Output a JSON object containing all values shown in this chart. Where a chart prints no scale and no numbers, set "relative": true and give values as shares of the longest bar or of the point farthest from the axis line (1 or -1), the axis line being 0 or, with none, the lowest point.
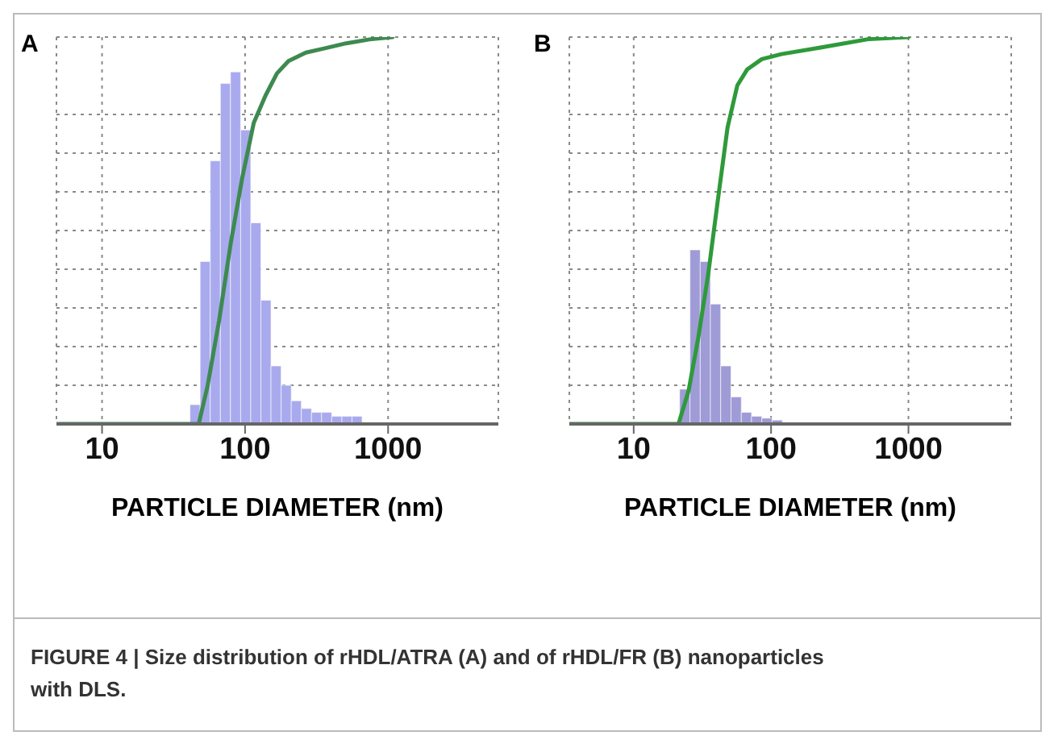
{
  "chart_data": [
    {
      "type": "histogram",
      "title": "A",
      "xlabel": "PARTICLE DIAMETER (nm)",
      "relative": true,
      "log": "x",
      "xlim": [
        4.8,
        5900
      ],
      "xticks": [
        10,
        100,
        1000
      ],
      "grid": true,
      "annotations": [
        "FIGURE 4 | Size distribution of rHDL/ATRA (A) and of rHDL/FR (B) nanoparticles with DLS."
      ],
      "series": [
        {
          "type": "histogram",
          "color": "#a9aaee",
          "bins": [
            41.2,
            48.5,
            57.1,
            67.2,
            79.1,
            93.1,
            109.6,
            129,
            151.8,
            178.7,
            210.3,
            247.5,
            291.3,
            342.9,
            403.6,
            475,
            559,
            658
          ],
          "values": [
            0.05,
            0.42,
            0.68,
            0.88,
            0.91,
            0.76,
            0.52,
            0.32,
            0.15,
            0.1,
            0.06,
            0.04,
            0.03,
            0.03,
            0.02,
            0.02,
            0.02
          ]
        },
        {
          "type": "line",
          "color": "#3d8a50",
          "x": [
            4.8,
            40,
            47.4,
            54.6,
            65.8,
            79.3,
            95.5,
            115,
            139,
            167,
            201,
            266,
            352,
            511,
            741,
            1076
          ],
          "values": [
            0,
            0,
            0,
            0.097,
            0.267,
            0.466,
            0.636,
            0.778,
            0.849,
            0.906,
            0.938,
            0.96,
            0.97,
            0.984,
            0.994,
            1
          ]
        }
      ]
    },
    {
      "type": "histogram",
      "title": "B",
      "xlabel": "PARTICLE DIAMETER (nm)",
      "relative": true,
      "log": "x",
      "xlim": [
        3.4,
        5600
      ],
      "xticks": [
        10,
        100,
        1000
      ],
      "grid": true,
      "series": [
        {
          "type": "histogram",
          "color": "#9f9bd6",
          "bins": [
            21.6,
            25.7,
            30.5,
            36.2,
            43.0,
            51.1,
            60.7,
            72.1,
            85.7,
            101.8,
            120.9
          ],
          "values": [
            0.09,
            0.45,
            0.42,
            0.31,
            0.15,
            0.07,
            0.03,
            0.02,
            0.015,
            0.01
          ]
        },
        {
          "type": "line",
          "color": "#2e9a3a",
          "x": [
            3.4,
            21.2,
            25.1,
            29.5,
            34.8,
            40.9,
            48.2,
            56.8,
            66.9,
            85.6,
            119,
            229,
            519,
            1000
          ],
          "values": [
            0,
            0,
            0.086,
            0.222,
            0.385,
            0.576,
            0.766,
            0.875,
            0.916,
            0.943,
            0.956,
            0.973,
            0.995,
            1
          ]
        }
      ]
    }
  ]
}
